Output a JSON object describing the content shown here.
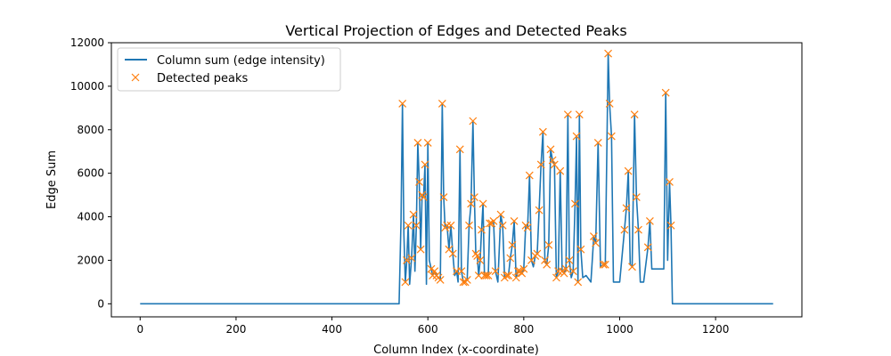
{
  "chart_data": {
    "type": "line",
    "title": "Vertical Projection of Edges and Detected Peaks",
    "xlabel": "Column Index (x-coordinate)",
    "ylabel": "Edge Sum",
    "xlim": [
      -60,
      1380
    ],
    "ylim": [
      -600,
      12000
    ],
    "xticks": [
      0,
      200,
      400,
      600,
      800,
      1000,
      1200
    ],
    "yticks": [
      0,
      2000,
      4000,
      6000,
      8000,
      10000,
      12000
    ],
    "grid": false,
    "legend_position": "top-left",
    "colors": {
      "line": "#1f77b4",
      "peaks": "#ff7f0e"
    },
    "series": [
      {
        "name": "Column sum (edge intensity)",
        "kind": "line",
        "points": [
          [
            0,
            0
          ],
          [
            540,
            0
          ],
          [
            544,
            3800
          ],
          [
            547,
            9200
          ],
          [
            550,
            3200
          ],
          [
            553,
            1000
          ],
          [
            556,
            2000
          ],
          [
            559,
            3600
          ],
          [
            562,
            900
          ],
          [
            566,
            2100
          ],
          [
            570,
            4100
          ],
          [
            573,
            1500
          ],
          [
            576,
            3600
          ],
          [
            579,
            7400
          ],
          [
            582,
            5600
          ],
          [
            585,
            2500
          ],
          [
            588,
            5000
          ],
          [
            591,
            4900
          ],
          [
            594,
            6400
          ],
          [
            597,
            900
          ],
          [
            600,
            7400
          ],
          [
            603,
            2000
          ],
          [
            607,
            1600
          ],
          [
            610,
            1300
          ],
          [
            614,
            1500
          ],
          [
            618,
            1300
          ],
          [
            622,
            1200
          ],
          [
            626,
            1100
          ],
          [
            630,
            9200
          ],
          [
            633,
            4900
          ],
          [
            636,
            3500
          ],
          [
            640,
            3600
          ],
          [
            644,
            2500
          ],
          [
            648,
            3600
          ],
          [
            652,
            2300
          ],
          [
            656,
            1300
          ],
          [
            660,
            1500
          ],
          [
            663,
            1000
          ],
          [
            667,
            7100
          ],
          [
            670,
            1500
          ],
          [
            674,
            1000
          ],
          [
            678,
            1000
          ],
          [
            682,
            1100
          ],
          [
            686,
            3600
          ],
          [
            690,
            4600
          ],
          [
            694,
            8400
          ],
          [
            697,
            4900
          ],
          [
            700,
            2300
          ],
          [
            703,
            2200
          ],
          [
            706,
            1300
          ],
          [
            709,
            2000
          ],
          [
            712,
            3400
          ],
          [
            715,
            4600
          ],
          [
            718,
            1300
          ],
          [
            722,
            1300
          ],
          [
            726,
            1300
          ],
          [
            729,
            3700
          ],
          [
            733,
            3700
          ],
          [
            737,
            3800
          ],
          [
            741,
            1500
          ],
          [
            746,
            1000
          ],
          [
            752,
            4100
          ],
          [
            756,
            3600
          ],
          [
            760,
            1200
          ],
          [
            764,
            1300
          ],
          [
            768,
            1300
          ],
          [
            772,
            2100
          ],
          [
            776,
            2700
          ],
          [
            780,
            3800
          ],
          [
            784,
            1200
          ],
          [
            788,
            1500
          ],
          [
            792,
            1500
          ],
          [
            796,
            1400
          ],
          [
            800,
            1600
          ],
          [
            804,
            3600
          ],
          [
            808,
            3500
          ],
          [
            812,
            5900
          ],
          [
            816,
            2000
          ],
          [
            820,
            1700
          ],
          [
            824,
            2200
          ],
          [
            828,
            2300
          ],
          [
            832,
            4300
          ],
          [
            836,
            6400
          ],
          [
            840,
            7900
          ],
          [
            844,
            2000
          ],
          [
            848,
            1800
          ],
          [
            852,
            2700
          ],
          [
            856,
            7100
          ],
          [
            860,
            6600
          ],
          [
            864,
            6400
          ],
          [
            868,
            1200
          ],
          [
            872,
            1500
          ],
          [
            876,
            6100
          ],
          [
            880,
            1500
          ],
          [
            884,
            1400
          ],
          [
            888,
            1600
          ],
          [
            892,
            8700
          ],
          [
            895,
            2000
          ],
          [
            899,
            1200
          ],
          [
            903,
            1500
          ],
          [
            907,
            4600
          ],
          [
            910,
            7700
          ],
          [
            913,
            1000
          ],
          [
            916,
            8700
          ],
          [
            919,
            2500
          ],
          [
            923,
            1200
          ],
          [
            930,
            1300
          ],
          [
            940,
            1000
          ],
          [
            946,
            3100
          ],
          [
            950,
            2800
          ],
          [
            955,
            7400
          ],
          [
            960,
            1700
          ],
          [
            966,
            1800
          ],
          [
            970,
            1800
          ],
          [
            976,
            11500
          ],
          [
            979,
            9200
          ],
          [
            983,
            7700
          ],
          [
            987,
            1000
          ],
          [
            1000,
            1000
          ],
          [
            1010,
            3400
          ],
          [
            1014,
            4400
          ],
          [
            1018,
            6100
          ],
          [
            1022,
            1800
          ],
          [
            1026,
            1700
          ],
          [
            1031,
            8700
          ],
          [
            1035,
            4900
          ],
          [
            1039,
            3400
          ],
          [
            1043,
            1000
          ],
          [
            1050,
            1000
          ],
          [
            1059,
            2600
          ],
          [
            1063,
            3800
          ],
          [
            1067,
            1600
          ],
          [
            1080,
            1600
          ],
          [
            1092,
            1600
          ],
          [
            1096,
            9700
          ],
          [
            1100,
            2000
          ],
          [
            1104,
            5600
          ],
          [
            1107,
            3600
          ],
          [
            1110,
            0
          ],
          [
            1320,
            0
          ]
        ]
      },
      {
        "name": "Detected peaks",
        "kind": "scatter",
        "marker": "x",
        "points": [
          [
            547,
            9200
          ],
          [
            553,
            1000
          ],
          [
            556,
            2000
          ],
          [
            559,
            3600
          ],
          [
            566,
            2100
          ],
          [
            570,
            4100
          ],
          [
            576,
            3600
          ],
          [
            579,
            7400
          ],
          [
            582,
            5600
          ],
          [
            585,
            2500
          ],
          [
            588,
            5000
          ],
          [
            591,
            4900
          ],
          [
            594,
            6400
          ],
          [
            600,
            7400
          ],
          [
            607,
            1600
          ],
          [
            610,
            1300
          ],
          [
            614,
            1500
          ],
          [
            618,
            1300
          ],
          [
            622,
            1200
          ],
          [
            626,
            1100
          ],
          [
            630,
            9200
          ],
          [
            633,
            4900
          ],
          [
            636,
            3500
          ],
          [
            640,
            3600
          ],
          [
            644,
            2500
          ],
          [
            648,
            3600
          ],
          [
            652,
            2300
          ],
          [
            660,
            1500
          ],
          [
            667,
            7100
          ],
          [
            670,
            1500
          ],
          [
            674,
            1000
          ],
          [
            678,
            1000
          ],
          [
            682,
            1100
          ],
          [
            686,
            3600
          ],
          [
            690,
            4600
          ],
          [
            694,
            8400
          ],
          [
            697,
            4900
          ],
          [
            700,
            2300
          ],
          [
            703,
            2200
          ],
          [
            706,
            1300
          ],
          [
            709,
            2000
          ],
          [
            712,
            3400
          ],
          [
            715,
            4600
          ],
          [
            718,
            1300
          ],
          [
            722,
            1300
          ],
          [
            726,
            1300
          ],
          [
            729,
            3700
          ],
          [
            733,
            3700
          ],
          [
            737,
            3800
          ],
          [
            741,
            1500
          ],
          [
            752,
            4100
          ],
          [
            756,
            3600
          ],
          [
            760,
            1200
          ],
          [
            764,
            1300
          ],
          [
            768,
            1300
          ],
          [
            772,
            2100
          ],
          [
            776,
            2700
          ],
          [
            780,
            3800
          ],
          [
            784,
            1200
          ],
          [
            788,
            1500
          ],
          [
            792,
            1500
          ],
          [
            796,
            1400
          ],
          [
            800,
            1600
          ],
          [
            804,
            3600
          ],
          [
            808,
            3500
          ],
          [
            812,
            5900
          ],
          [
            816,
            2000
          ],
          [
            824,
            2200
          ],
          [
            828,
            2300
          ],
          [
            832,
            4300
          ],
          [
            836,
            6400
          ],
          [
            840,
            7900
          ],
          [
            844,
            2000
          ],
          [
            848,
            1800
          ],
          [
            852,
            2700
          ],
          [
            856,
            7100
          ],
          [
            860,
            6600
          ],
          [
            864,
            6400
          ],
          [
            868,
            1200
          ],
          [
            872,
            1500
          ],
          [
            876,
            6100
          ],
          [
            880,
            1500
          ],
          [
            884,
            1400
          ],
          [
            888,
            1600
          ],
          [
            892,
            8700
          ],
          [
            895,
            2000
          ],
          [
            903,
            1500
          ],
          [
            907,
            4600
          ],
          [
            910,
            7700
          ],
          [
            913,
            1000
          ],
          [
            916,
            8700
          ],
          [
            919,
            2500
          ],
          [
            946,
            3100
          ],
          [
            950,
            2800
          ],
          [
            955,
            7400
          ],
          [
            966,
            1800
          ],
          [
            970,
            1800
          ],
          [
            976,
            11500
          ],
          [
            979,
            9200
          ],
          [
            983,
            7700
          ],
          [
            1010,
            3400
          ],
          [
            1014,
            4400
          ],
          [
            1018,
            6100
          ],
          [
            1026,
            1700
          ],
          [
            1031,
            8700
          ],
          [
            1035,
            4900
          ],
          [
            1039,
            3400
          ],
          [
            1059,
            2600
          ],
          [
            1063,
            3800
          ],
          [
            1096,
            9700
          ],
          [
            1104,
            5600
          ],
          [
            1107,
            3600
          ]
        ]
      }
    ]
  }
}
